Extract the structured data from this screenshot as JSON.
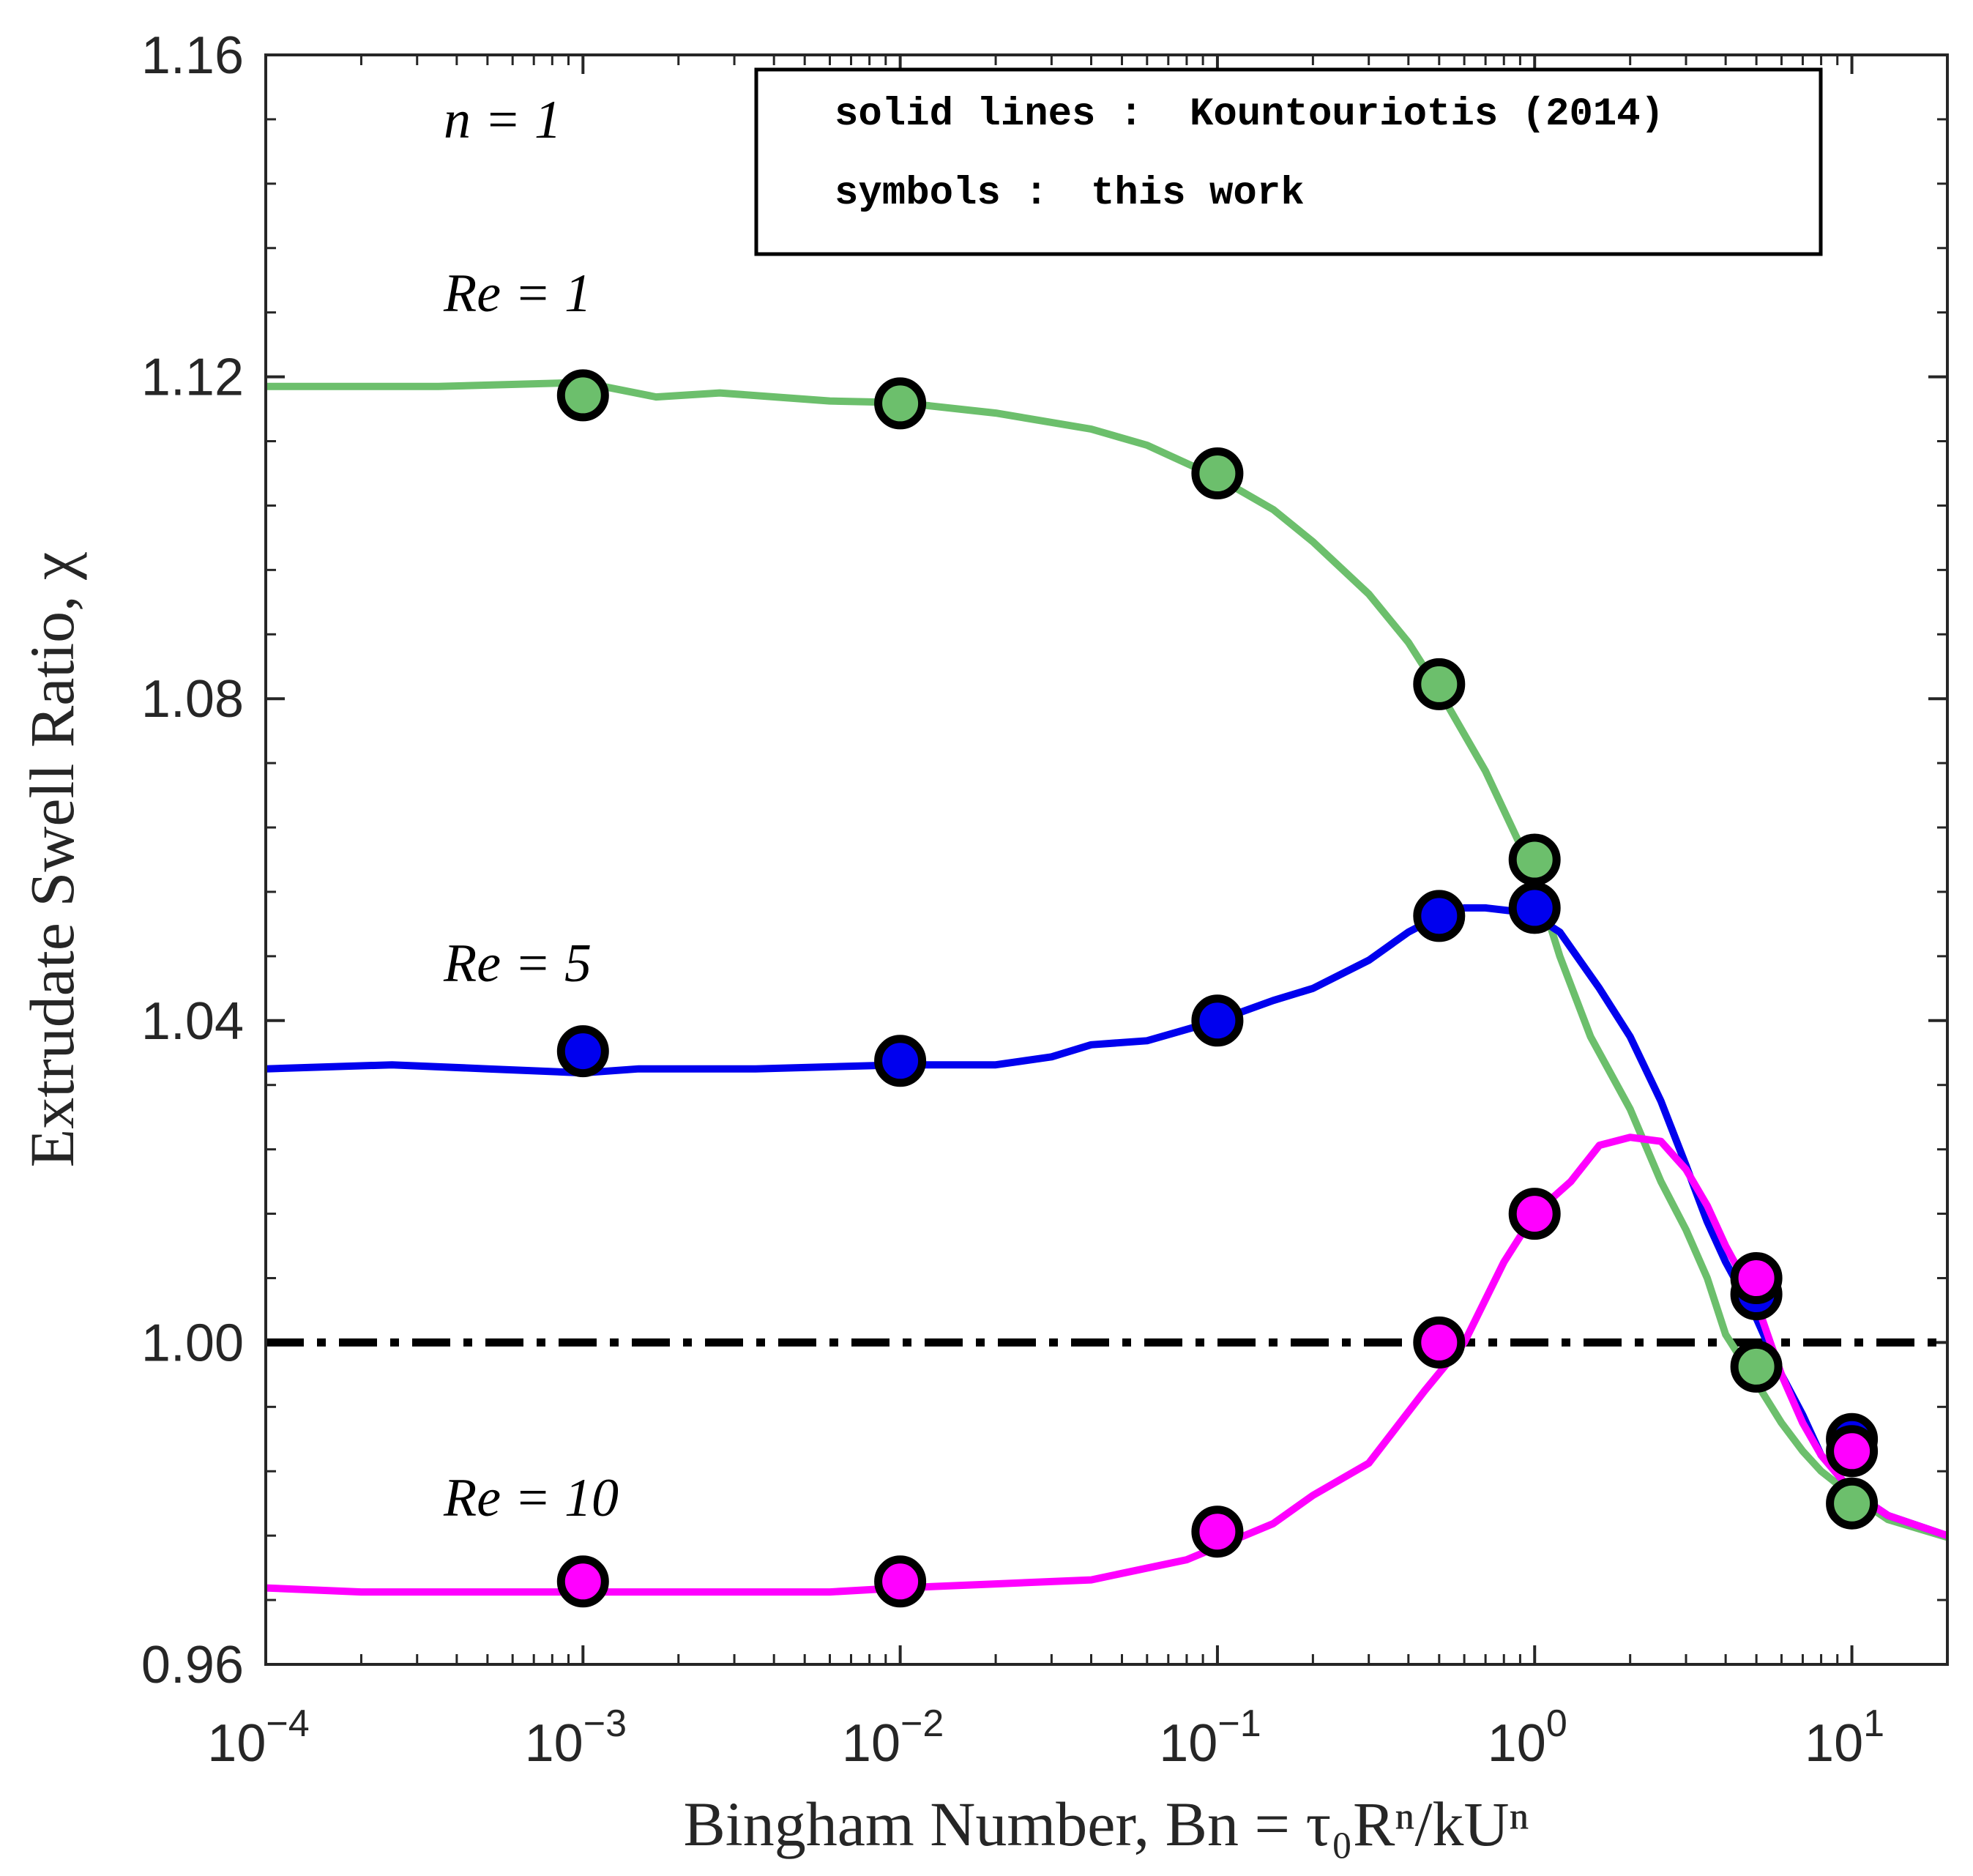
{
  "chart_data": {
    "type": "line",
    "title": "",
    "xlabel": "Bingham Number, Bn = τ₀Rⁿ/kUⁿ",
    "ylabel": "Extrudate Swell Ratio, χ",
    "xscale": "log",
    "xlim": [
      0.0001,
      20
    ],
    "ylim": [
      0.96,
      1.16
    ],
    "x_ticks": [
      {
        "value": 0.0001,
        "base": "10",
        "exp": "−4"
      },
      {
        "value": 0.001,
        "base": "10",
        "exp": "−3"
      },
      {
        "value": 0.01,
        "base": "10",
        "exp": "−2"
      },
      {
        "value": 0.1,
        "base": "10",
        "exp": "−1"
      },
      {
        "value": 1,
        "base": "10",
        "exp": "0"
      },
      {
        "value": 10,
        "base": "10",
        "exp": "1"
      }
    ],
    "y_ticks": [
      {
        "value": 0.96,
        "label": "0.96"
      },
      {
        "value": 1.0,
        "label": "1.00"
      },
      {
        "value": 1.04,
        "label": "1.04"
      },
      {
        "value": 1.08,
        "label": "1.08"
      },
      {
        "value": 1.12,
        "label": "1.12"
      },
      {
        "value": 1.16,
        "label": "1.16"
      }
    ],
    "reference_line": {
      "y": 1.0,
      "style": "dash-dot",
      "color": "#000000"
    },
    "annotations": {
      "n": "n = 1",
      "re1": "Re = 1",
      "re5": "Re = 5",
      "re10": "Re = 10"
    },
    "legend": {
      "placement": "top-right",
      "line1_key": "solid lines :",
      "line1_value": "Kountouriotis (2014)",
      "line2_key": "symbols :",
      "line2_value": "this work"
    },
    "series": [
      {
        "name": "Re = 1",
        "color": "#6cbf6c",
        "line": [
          [
            0.0001,
            1.1188
          ],
          [
            0.00035,
            1.1188
          ],
          [
            0.001,
            1.1193
          ],
          [
            0.0017,
            1.1175
          ],
          [
            0.0027,
            1.118
          ],
          [
            0.006,
            1.117
          ],
          [
            0.01,
            1.1168
          ],
          [
            0.02,
            1.1155
          ],
          [
            0.04,
            1.1135
          ],
          [
            0.06,
            1.1115
          ],
          [
            0.1,
            1.1075
          ],
          [
            0.15,
            1.1035
          ],
          [
            0.2,
            1.0995
          ],
          [
            0.3,
            1.093
          ],
          [
            0.4,
            1.087
          ],
          [
            0.5,
            1.081
          ],
          [
            0.7,
            1.071
          ],
          [
            1.0,
            1.058
          ],
          [
            1.2,
            1.048
          ],
          [
            1.5,
            1.038
          ],
          [
            2.0,
            1.029
          ],
          [
            2.5,
            1.02
          ],
          [
            3.0,
            1.014
          ],
          [
            3.5,
            1.008
          ],
          [
            4.0,
            1.001
          ],
          [
            5.0,
            0.995
          ],
          [
            6.0,
            0.99
          ],
          [
            7.0,
            0.9865
          ],
          [
            8.0,
            0.984
          ],
          [
            10,
            0.981
          ],
          [
            13,
            0.978
          ],
          [
            20,
            0.9758
          ]
        ],
        "points": [
          [
            0.001,
            1.1177
          ],
          [
            0.01,
            1.1167
          ],
          [
            0.1,
            1.108
          ],
          [
            0.5,
            1.0818
          ],
          [
            1.0,
            1.06
          ],
          [
            5.0,
            0.997
          ],
          [
            10,
            0.98
          ]
        ]
      },
      {
        "name": "Re = 5",
        "color": "#0000ee",
        "line": [
          [
            0.0001,
            1.034
          ],
          [
            0.00025,
            1.0345
          ],
          [
            0.0005,
            1.034
          ],
          [
            0.001,
            1.0335
          ],
          [
            0.0015,
            1.034
          ],
          [
            0.0035,
            1.034
          ],
          [
            0.01,
            1.0345
          ],
          [
            0.02,
            1.0345
          ],
          [
            0.03,
            1.0355
          ],
          [
            0.04,
            1.037
          ],
          [
            0.06,
            1.0375
          ],
          [
            0.1,
            1.04
          ],
          [
            0.15,
            1.0425
          ],
          [
            0.2,
            1.044
          ],
          [
            0.3,
            1.0475
          ],
          [
            0.4,
            1.051
          ],
          [
            0.5,
            1.053
          ],
          [
            0.6,
            1.054
          ],
          [
            0.7,
            1.054
          ],
          [
            0.9,
            1.0535
          ],
          [
            1.0,
            1.053
          ],
          [
            1.2,
            1.051
          ],
          [
            1.6,
            1.044
          ],
          [
            2.0,
            1.038
          ],
          [
            2.5,
            1.03
          ],
          [
            3.0,
            1.022
          ],
          [
            3.5,
            1.015
          ],
          [
            4.0,
            1.01
          ],
          [
            5.0,
            1.003
          ],
          [
            6.0,
            0.996
          ],
          [
            7.0,
            0.991
          ],
          [
            8.0,
            0.986
          ],
          [
            10,
            0.9815
          ],
          [
            13,
            0.9785
          ],
          [
            20,
            0.976
          ]
        ],
        "points": [
          [
            0.001,
            1.0362
          ],
          [
            0.01,
            1.035
          ],
          [
            0.1,
            1.04
          ],
          [
            0.5,
            1.053
          ],
          [
            1.0,
            1.054
          ],
          [
            5.0,
            1.006
          ],
          [
            10,
            0.988
          ]
        ]
      },
      {
        "name": "Re = 10",
        "color": "#ff00ff",
        "line": [
          [
            0.0001,
            0.9695
          ],
          [
            0.0002,
            0.969
          ],
          [
            0.001,
            0.969
          ],
          [
            0.0025,
            0.969
          ],
          [
            0.006,
            0.969
          ],
          [
            0.01,
            0.9695
          ],
          [
            0.02,
            0.97
          ],
          [
            0.04,
            0.9705
          ],
          [
            0.08,
            0.973
          ],
          [
            0.15,
            0.9775
          ],
          [
            0.2,
            0.981
          ],
          [
            0.3,
            0.985
          ],
          [
            0.45,
            0.994
          ],
          [
            0.6,
            1.0
          ],
          [
            0.8,
            1.01
          ],
          [
            1.0,
            1.016
          ],
          [
            1.3,
            1.02
          ],
          [
            1.6,
            1.0245
          ],
          [
            2.0,
            1.0255
          ],
          [
            2.5,
            1.025
          ],
          [
            3.0,
            1.0215
          ],
          [
            3.5,
            1.017
          ],
          [
            4.0,
            1.012
          ],
          [
            5.0,
            1.005
          ],
          [
            6.0,
            0.996
          ],
          [
            7.0,
            0.99
          ],
          [
            8.0,
            0.986
          ],
          [
            10,
            0.9815
          ],
          [
            13,
            0.9785
          ],
          [
            20,
            0.976
          ]
        ],
        "points": [
          [
            0.001,
            0.9703
          ],
          [
            0.01,
            0.9703
          ],
          [
            0.1,
            0.9765
          ],
          [
            0.5,
            1.0
          ],
          [
            1.0,
            1.016
          ],
          [
            5.0,
            1.008
          ],
          [
            10,
            0.9865
          ]
        ]
      }
    ]
  }
}
